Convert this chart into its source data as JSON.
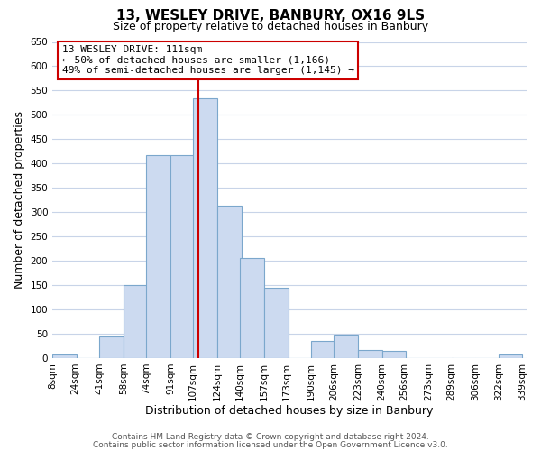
{
  "title": "13, WESLEY DRIVE, BANBURY, OX16 9LS",
  "subtitle": "Size of property relative to detached houses in Banbury",
  "xlabel": "Distribution of detached houses by size in Banbury",
  "ylabel": "Number of detached properties",
  "bar_left_edges": [
    8,
    24,
    41,
    58,
    74,
    91,
    107,
    124,
    140,
    157,
    173,
    190,
    206,
    223,
    240,
    256,
    273,
    289,
    306,
    322
  ],
  "bar_heights": [
    8,
    0,
    44,
    150,
    418,
    418,
    535,
    313,
    206,
    144,
    0,
    35,
    49,
    16,
    14,
    0,
    0,
    0,
    0,
    8
  ],
  "bin_width": 17,
  "bar_color": "#ccdaf0",
  "bar_edge_color": "#7ba7cc",
  "vline_x": 111,
  "vline_color": "#cc0000",
  "ylim": [
    0,
    650
  ],
  "yticks": [
    0,
    50,
    100,
    150,
    200,
    250,
    300,
    350,
    400,
    450,
    500,
    550,
    600,
    650
  ],
  "xtick_labels": [
    "8sqm",
    "24sqm",
    "41sqm",
    "58sqm",
    "74sqm",
    "91sqm",
    "107sqm",
    "124sqm",
    "140sqm",
    "157sqm",
    "173sqm",
    "190sqm",
    "206sqm",
    "223sqm",
    "240sqm",
    "256sqm",
    "273sqm",
    "289sqm",
    "306sqm",
    "322sqm",
    "339sqm"
  ],
  "annotation_title": "13 WESLEY DRIVE: 111sqm",
  "annotation_line1": "← 50% of detached houses are smaller (1,166)",
  "annotation_line2": "49% of semi-detached houses are larger (1,145) →",
  "annotation_box_color": "#ffffff",
  "annotation_box_edge": "#cc0000",
  "footer1": "Contains HM Land Registry data © Crown copyright and database right 2024.",
  "footer2": "Contains public sector information licensed under the Open Government Licence v3.0.",
  "background_color": "#ffffff",
  "grid_color": "#c8d4e8",
  "title_fontsize": 11,
  "subtitle_fontsize": 9,
  "axis_label_fontsize": 9,
  "tick_fontsize": 7.5,
  "annotation_fontsize": 8,
  "footer_fontsize": 6.5
}
